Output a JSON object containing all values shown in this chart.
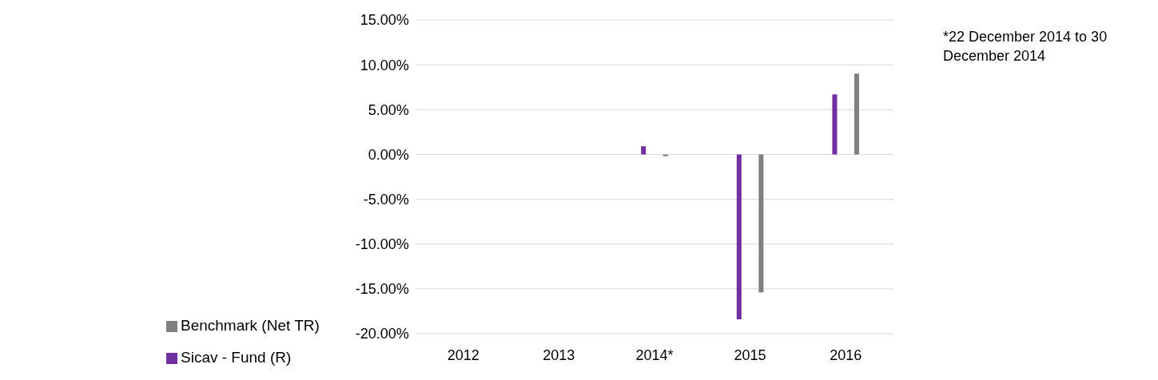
{
  "chart_data": {
    "type": "bar",
    "categories": [
      "2012",
      "2013",
      "2014*",
      "2015",
      "2016"
    ],
    "series": [
      {
        "name": "Sicav - Fund (R)",
        "color": "#7030a0",
        "values": [
          null,
          null,
          0.9,
          -18.4,
          6.7
        ]
      },
      {
        "name": "Benchmark (Net TR)",
        "color": "#808080",
        "values": [
          null,
          null,
          -0.2,
          -15.4,
          9.0
        ]
      }
    ],
    "ylim": [
      -20,
      15
    ],
    "yticks": [
      {
        "value": -20,
        "label": "-20.00%"
      },
      {
        "value": -15,
        "label": "-15.00%"
      },
      {
        "value": -10,
        "label": "-10.00%"
      },
      {
        "value": -5,
        "label": "-5.00%"
      },
      {
        "value": 0,
        "label": "0.00%"
      },
      {
        "value": 5,
        "label": "5.00%"
      },
      {
        "value": 10,
        "label": "10.00%"
      },
      {
        "value": 15,
        "label": "15.00%"
      }
    ],
    "grid": "y",
    "legend": "bottom",
    "annotations": [
      "*22  December  2014 to 30 December 2014"
    ]
  }
}
